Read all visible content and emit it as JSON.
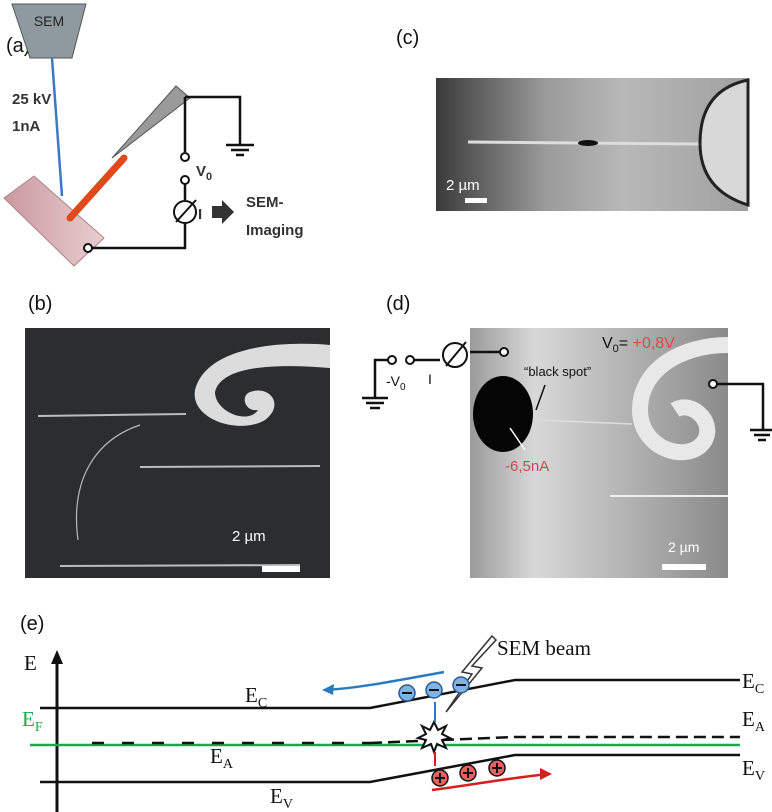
{
  "panel_a": {
    "label": "(a)",
    "source": "SEM",
    "voltage": "25 kV",
    "current": "1nA",
    "bias": {
      "symbol": "V",
      "subscript": "0"
    },
    "meter": "I",
    "output": [
      "SEM-",
      "Imaging"
    ]
  },
  "panel_b": {
    "label": "(b)",
    "scale": "2 µm"
  },
  "panel_c": {
    "label": "(c)",
    "scale": "2 µm"
  },
  "panel_d": {
    "label": "(d)",
    "bias": {
      "symbol": "-V",
      "subscript": "0"
    },
    "meter": "I",
    "annotation": "“black spot”",
    "voltage": {
      "symbol": "V",
      "subscript": "0",
      "equals": "= ",
      "value": "+0,8V"
    },
    "current": "-6,5nA",
    "scale": "2 µm"
  },
  "panel_e": {
    "label": "(e)",
    "axis": "E",
    "fermi": {
      "symbol": "E",
      "subscript": "F"
    },
    "beam": "SEM beam",
    "left": {
      "conduction": {
        "symbol": "E",
        "subscript": "C"
      },
      "acceptor": {
        "symbol": "E",
        "subscript": "A"
      },
      "valence": {
        "symbol": "E",
        "subscript": "V"
      }
    },
    "right": {
      "conduction": {
        "symbol": "E",
        "subscript": "C"
      },
      "acceptor": {
        "symbol": "E",
        "subscript": "A"
      },
      "valence": {
        "symbol": "E",
        "subscript": "V"
      }
    }
  }
}
